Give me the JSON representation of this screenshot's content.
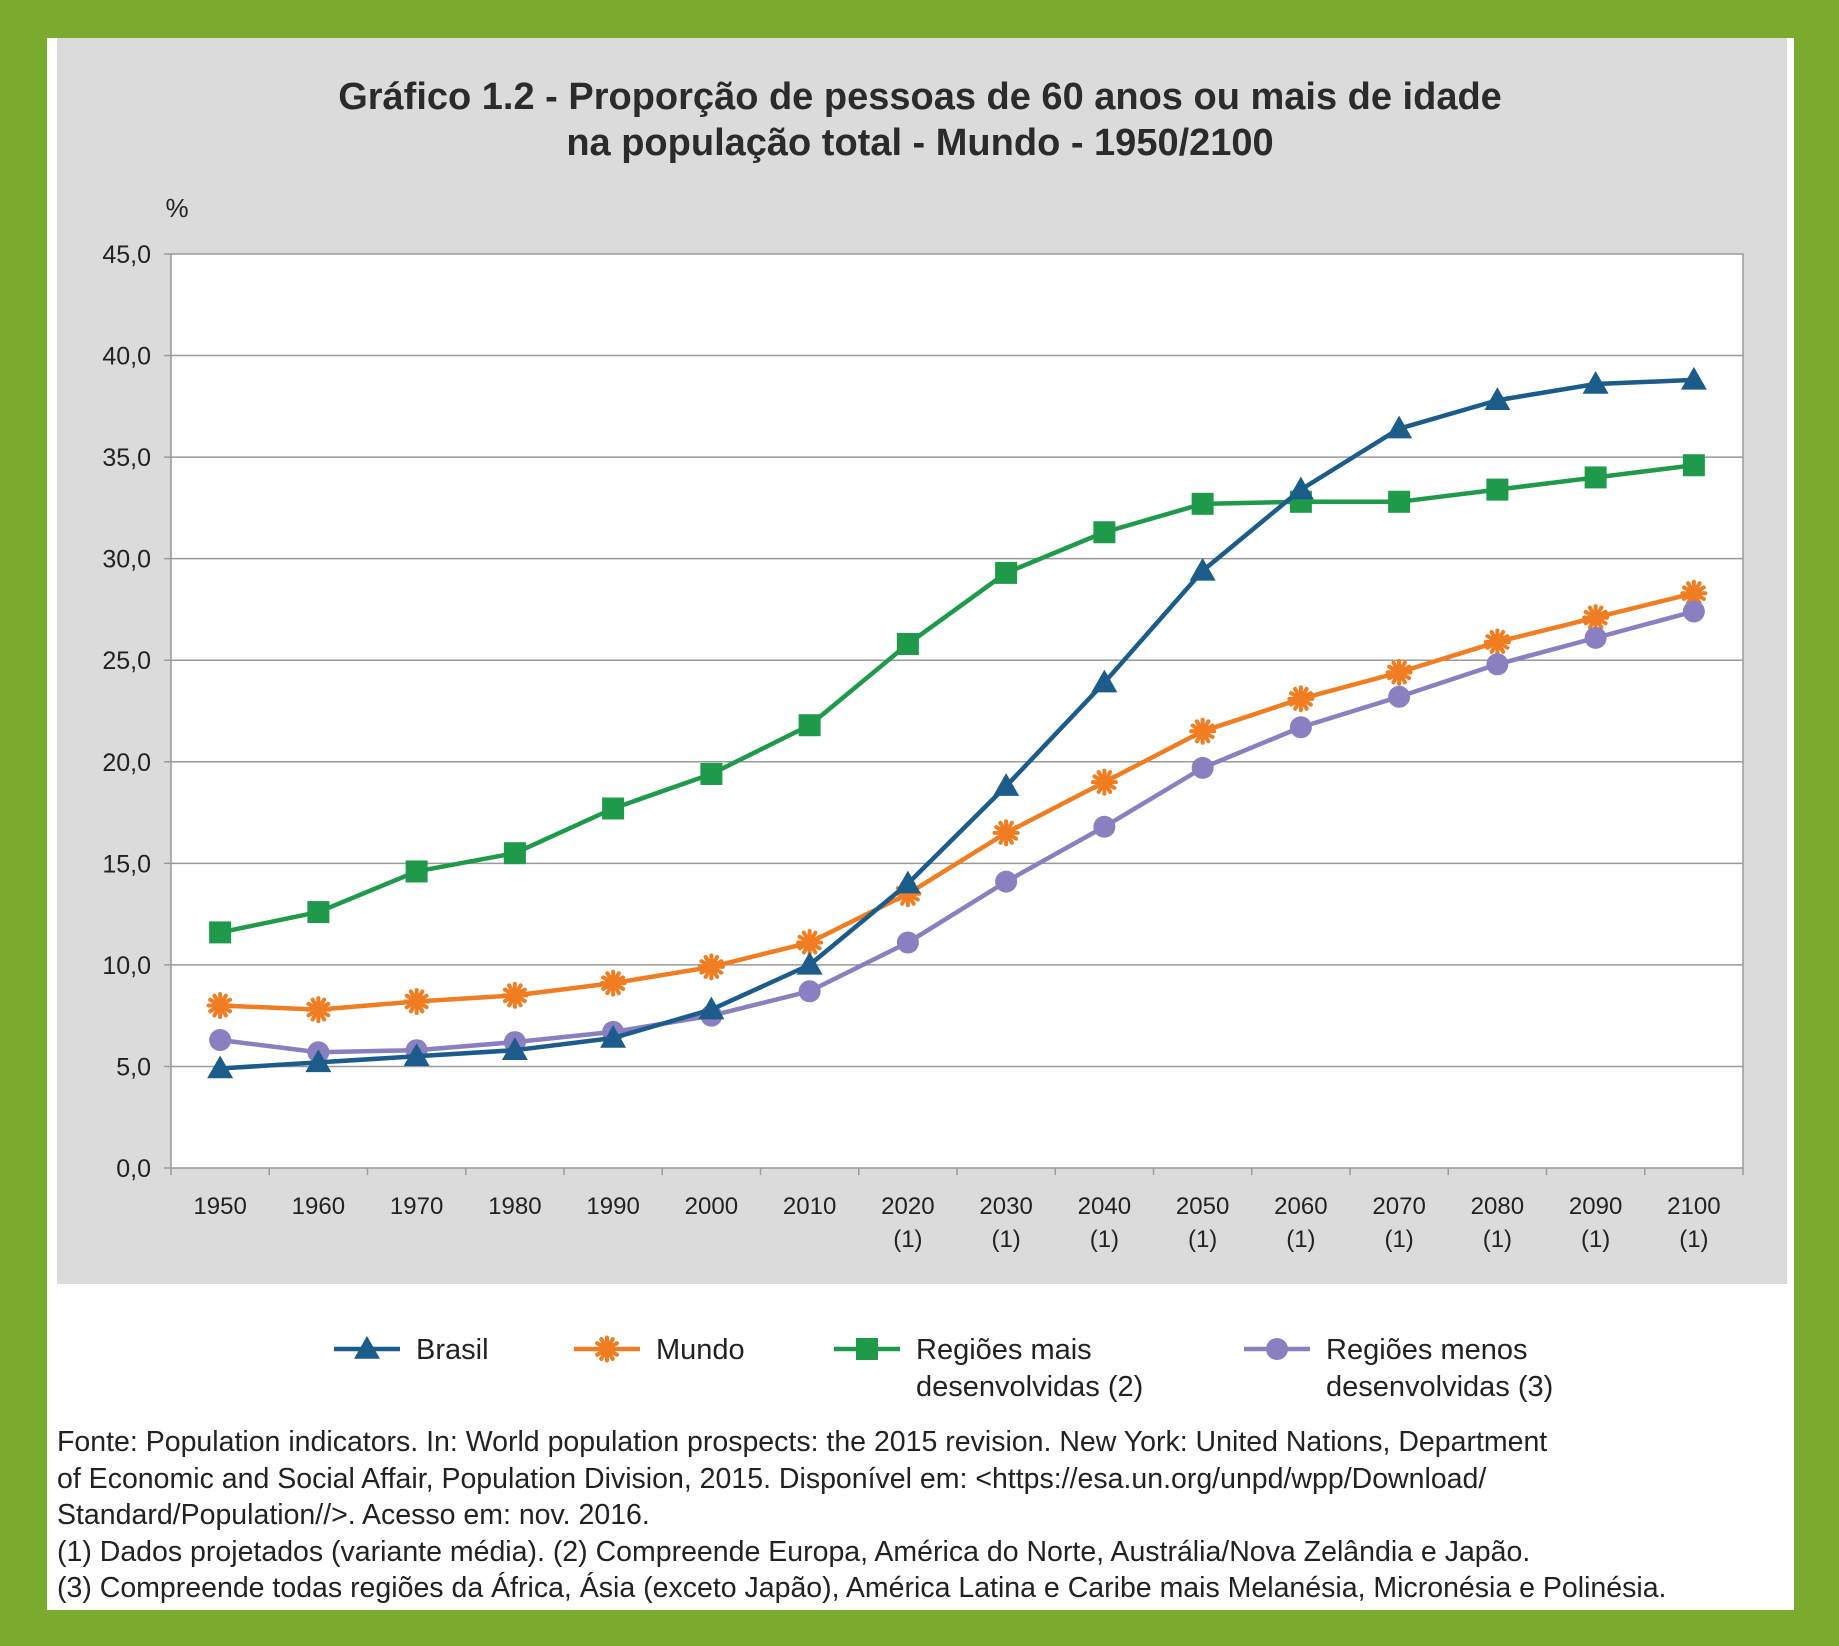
{
  "chart_data": {
    "type": "line",
    "title": "Gráfico 1.2 - Proporção de pessoas de 60 anos ou mais de idade",
    "subtitle": "na população total - Mundo - 1950/2100",
    "ylabel": "%",
    "ylim": [
      0,
      45
    ],
    "yticks": [
      "0,0",
      "5,0",
      "10,0",
      "15,0",
      "20,0",
      "25,0",
      "30,0",
      "35,0",
      "40,0",
      "45,0"
    ],
    "x": [
      "1950",
      "1960",
      "1970",
      "1980",
      "1990",
      "2000",
      "2010",
      "2020",
      "2030",
      "2040",
      "2050",
      "2060",
      "2070",
      "2080",
      "2090",
      "2100"
    ],
    "x_notes": [
      "",
      "",
      "",
      "",
      "",
      "",
      "",
      "(1)",
      "(1)",
      "(1)",
      "(1)",
      "(1)",
      "(1)",
      "(1)",
      "(1)",
      "(1)"
    ],
    "grid": "horizontal",
    "legend_position": "bottom",
    "series": [
      {
        "name": "Brasil",
        "color": "#1b5c8a",
        "marker": "triangle",
        "values": [
          4.9,
          5.2,
          5.5,
          5.8,
          6.4,
          7.8,
          10.0,
          14.0,
          18.8,
          23.9,
          29.4,
          33.4,
          36.4,
          37.8,
          38.6,
          38.8
        ]
      },
      {
        "name": "Mundo",
        "color": "#f07d22",
        "marker": "asterisk",
        "values": [
          8.0,
          7.8,
          8.2,
          8.5,
          9.1,
          9.9,
          11.1,
          13.5,
          16.5,
          19.0,
          21.5,
          23.1,
          24.4,
          25.9,
          27.1,
          28.3
        ]
      },
      {
        "name": "Regiões mais desenvolvidas (2)",
        "name_lines": [
          "Regiões mais",
          "desenvolvidas (2)"
        ],
        "color": "#1f9a4a",
        "marker": "square",
        "values": [
          11.6,
          12.6,
          14.6,
          15.5,
          17.7,
          19.4,
          21.8,
          25.8,
          29.3,
          31.3,
          32.7,
          32.8,
          32.8,
          33.4,
          34.0,
          34.6
        ]
      },
      {
        "name": "Regiões menos desenvolvidas (3)",
        "name_lines": [
          "Regiões menos",
          "desenvolvidas (3)"
        ],
        "color": "#8a7fc0",
        "marker": "circle",
        "values": [
          6.3,
          5.7,
          5.8,
          6.2,
          6.7,
          7.5,
          8.7,
          11.1,
          14.1,
          16.8,
          19.7,
          21.7,
          23.2,
          24.8,
          26.1,
          27.4
        ]
      }
    ]
  },
  "notes": {
    "source_line1": "Fonte: Population indicators. In: World population prospects: the 2015 revision. New York: United Nations, Department",
    "source_line2": "of Economic and Social Affair, Population Division, 2015. Disponível em: <https://esa.un.org/unpd/wpp/Download/",
    "source_line3": "Standard/Population//>. Acesso em: nov. 2016.",
    "note_1_2": "(1) Dados projetados (variante média). (2) Compreende Europa, América do Norte, Austrália/Nova Zelândia e Japão.",
    "note_3": "(3) Compreende todas regiões da África, Ásia (exceto Japão), América Latina e Caribe mais Melanésia, Micronésia e Polinésia."
  }
}
